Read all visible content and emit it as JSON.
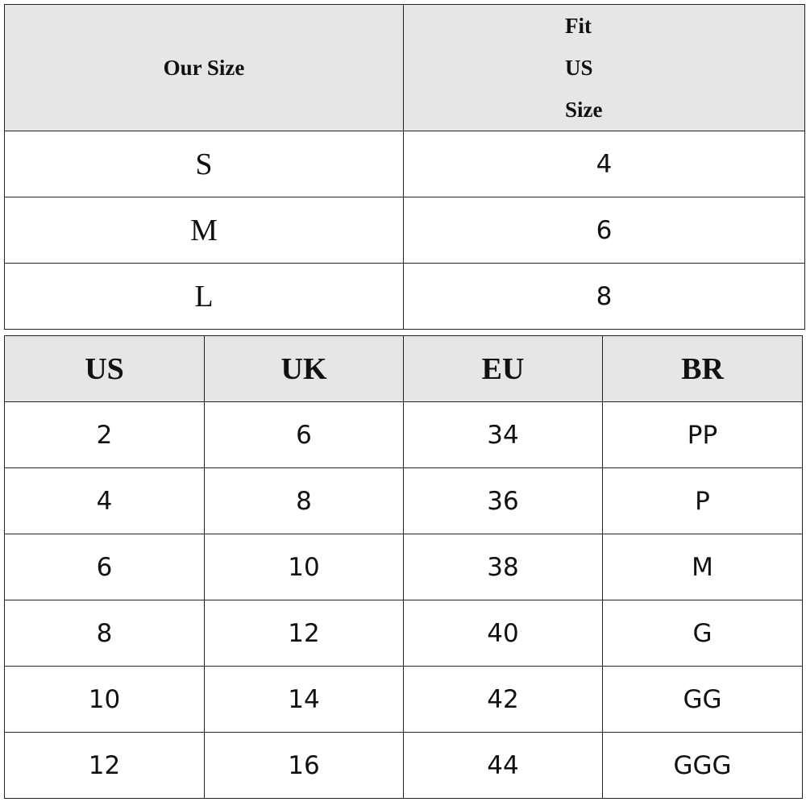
{
  "size_fit_table": {
    "headers": [
      "Our Size",
      "Fit US Size"
    ],
    "rows": [
      [
        "S",
        "4"
      ],
      [
        "M",
        "6"
      ],
      [
        "L",
        "8"
      ]
    ]
  },
  "conversion_table": {
    "headers": [
      "US",
      "UK",
      "EU",
      "BR"
    ],
    "rows": [
      [
        "2",
        "6",
        "34",
        "PP"
      ],
      [
        "4",
        "8",
        "36",
        "P"
      ],
      [
        "6",
        "10",
        "38",
        "M"
      ],
      [
        "8",
        "12",
        "40",
        "G"
      ],
      [
        "10",
        "14",
        "42",
        "GG"
      ],
      [
        "12",
        "16",
        "44",
        "GGG"
      ]
    ]
  },
  "colors": {
    "header_bg": "#e6e6e6",
    "border": "#222222"
  }
}
